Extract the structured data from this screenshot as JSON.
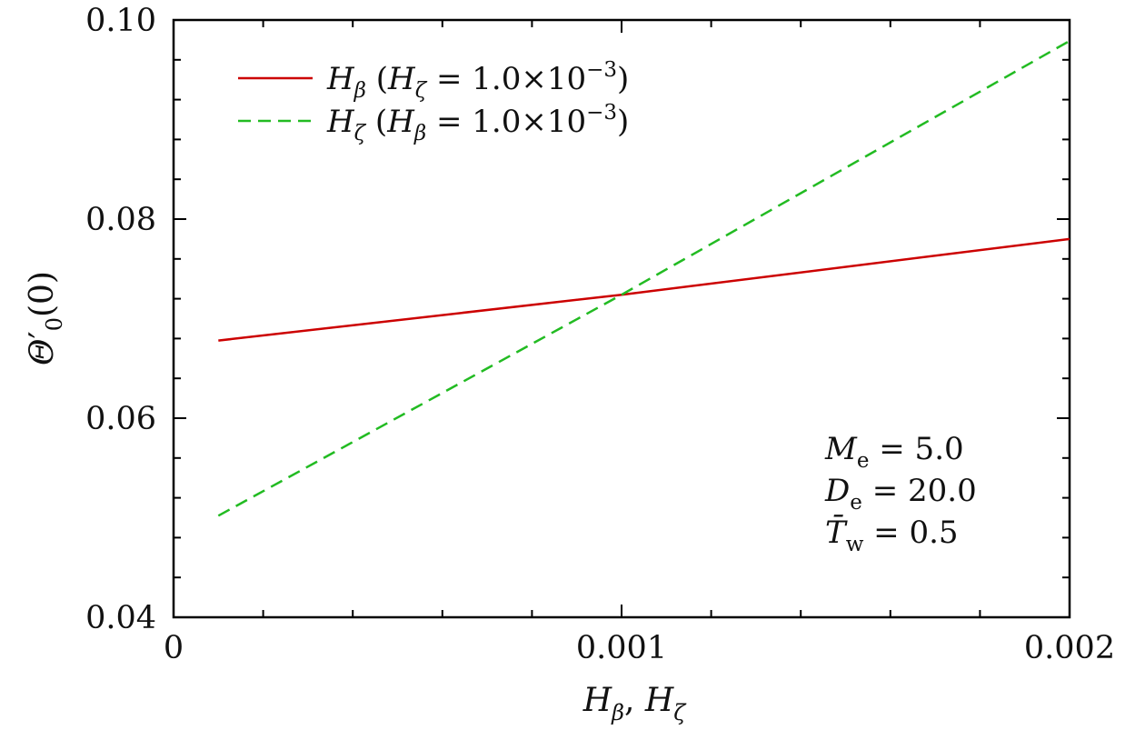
{
  "chart_data": {
    "type": "line",
    "title": "",
    "xlabel": "Hβ, Hζ",
    "ylabel": "Θ′0(0)",
    "xlim": [
      0,
      0.002
    ],
    "ylim": [
      0.04,
      0.1
    ],
    "x_ticks": [
      {
        "value": 0,
        "label": "0"
      },
      {
        "value": 0.001,
        "label": "0.001"
      },
      {
        "value": 0.002,
        "label": "0.002"
      }
    ],
    "y_ticks": [
      {
        "value": 0.04,
        "label": "0.04"
      },
      {
        "value": 0.06,
        "label": "0.06"
      },
      {
        "value": 0.08,
        "label": "0.08"
      },
      {
        "value": 0.1,
        "label": "0.10"
      }
    ],
    "x_minor_step": 0.0002,
    "y_minor_step": 0.004,
    "grid": false,
    "legend_position": "top-left",
    "series": [
      {
        "name": "Hβ (Hζ = 1.0×10−3)",
        "color": "#cc0000",
        "dash": "solid",
        "x": [
          0.0001,
          0.001,
          0.002
        ],
        "y": [
          0.0678,
          0.0724,
          0.078
        ]
      },
      {
        "name": "Hζ (Hβ = 1.0×10−3)",
        "color": "#22bb22",
        "dash": "dashed",
        "x": [
          0.0001,
          0.001,
          0.002
        ],
        "y": [
          0.0502,
          0.0724,
          0.0979
        ]
      }
    ],
    "annotations": [
      "Me = 5.0",
      "De = 20.0",
      "T̄w = 0.5"
    ]
  }
}
